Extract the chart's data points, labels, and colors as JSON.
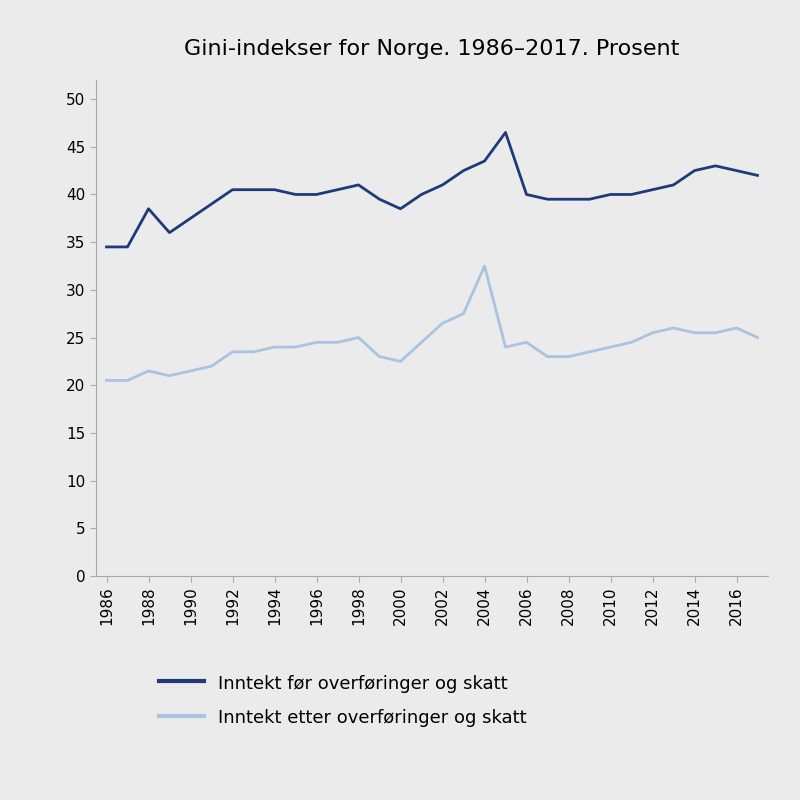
{
  "title": "Gini-indekser for Norge. 1986–2017. Prosent",
  "years": [
    1986,
    1987,
    1988,
    1989,
    1990,
    1991,
    1992,
    1993,
    1994,
    1995,
    1996,
    1997,
    1998,
    1999,
    2000,
    2001,
    2002,
    2003,
    2004,
    2005,
    2006,
    2007,
    2008,
    2009,
    2010,
    2011,
    2012,
    2013,
    2014,
    2015,
    2016,
    2017
  ],
  "before_tax": [
    34.5,
    34.5,
    38.5,
    36.0,
    37.5,
    39.0,
    40.5,
    40.5,
    40.5,
    40.0,
    40.0,
    40.5,
    41.0,
    39.5,
    38.5,
    40.0,
    41.0,
    42.5,
    43.5,
    46.5,
    40.0,
    39.5,
    39.5,
    39.5,
    40.0,
    40.0,
    40.5,
    41.0,
    42.5,
    43.0,
    42.5,
    42.0
  ],
  "after_tax": [
    20.5,
    20.5,
    21.5,
    21.0,
    21.5,
    22.0,
    23.5,
    23.5,
    24.0,
    24.0,
    24.5,
    24.5,
    25.0,
    23.0,
    22.5,
    24.5,
    26.5,
    27.5,
    32.5,
    24.0,
    24.5,
    23.0,
    23.0,
    23.5,
    24.0,
    24.5,
    25.5,
    26.0,
    25.5,
    25.5,
    26.0,
    25.0
  ],
  "before_tax_color": "#1e3a7a",
  "after_tax_color": "#a8c4e0",
  "background_color": "#ebebeb",
  "ylim": [
    0,
    52
  ],
  "yticks": [
    0,
    5,
    10,
    15,
    20,
    25,
    30,
    35,
    40,
    45,
    50
  ],
  "legend_label_before": "Inntekt før overføringer og skatt",
  "legend_label_after": "Inntekt etter overføringer og skatt",
  "line_width": 2.0,
  "title_fontsize": 16,
  "tick_fontsize": 11,
  "legend_fontsize": 13
}
